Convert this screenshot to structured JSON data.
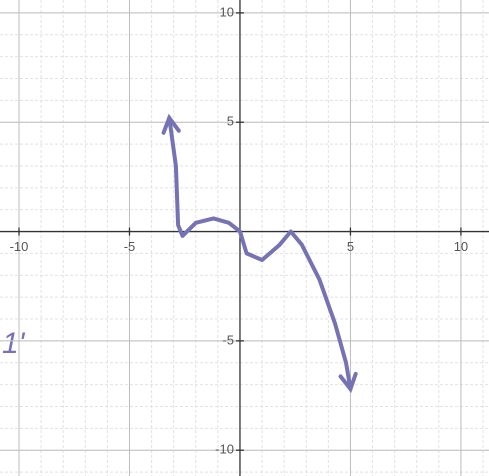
{
  "chart_data": {
    "type": "line",
    "annotation": "1'",
    "x": [
      -3.2,
      -2.9,
      -2.8,
      -2.6,
      -2.0,
      -1.2,
      -0.5,
      0.0,
      0.3,
      1.0,
      1.8,
      2.3,
      2.8,
      3.6,
      4.3,
      4.8,
      5.0
    ],
    "values": [
      5.2,
      3.0,
      0.3,
      -0.2,
      0.4,
      0.6,
      0.4,
      0.0,
      -1.0,
      -1.3,
      -0.6,
      0.0,
      -0.6,
      -2.2,
      -4.2,
      -6.0,
      -7.2
    ],
    "color": "#7673b5",
    "xlim": [
      -10.86,
      11.27
    ],
    "ylim": [
      -11.18,
      10.59
    ],
    "xticks": [
      -10,
      -5,
      5,
      10
    ],
    "yticks": [
      -10,
      -5,
      5,
      10
    ],
    "grid": true
  }
}
